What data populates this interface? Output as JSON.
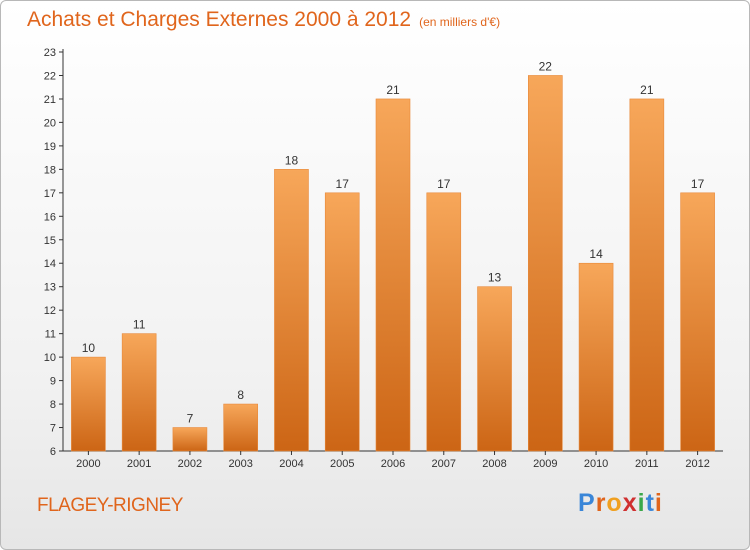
{
  "title": "Achats et Charges Externes 2000 à 2012",
  "subtitle": "(en milliers d'€)",
  "commune": "FLAGEY-RIGNEY",
  "logo": {
    "letters": [
      "P",
      "r",
      "o",
      "x",
      "i",
      "t",
      "i"
    ],
    "colors": [
      "#3a86d8",
      "#e0651c",
      "#f0a020",
      "#d03030",
      "#3aa84a",
      "#3a86d8",
      "#e0651c"
    ]
  },
  "colors": {
    "bar_top": "#f7a75a",
    "bar_bottom": "#cc6515",
    "accent": "#e0651c",
    "axis": "#333333"
  },
  "chart_data": {
    "type": "bar",
    "categories": [
      "2000",
      "2001",
      "2002",
      "2003",
      "2004",
      "2005",
      "2006",
      "2007",
      "2008",
      "2009",
      "2010",
      "2011",
      "2012"
    ],
    "values": [
      10,
      11,
      7,
      8,
      18,
      17,
      21,
      17,
      13,
      22,
      14,
      21,
      17
    ],
    "ylim": [
      6,
      23
    ],
    "yticks": [
      6,
      7,
      8,
      9,
      10,
      11,
      12,
      13,
      14,
      15,
      16,
      17,
      18,
      19,
      20,
      21,
      22,
      23
    ],
    "grid": false,
    "xlabel": "",
    "ylabel": ""
  }
}
